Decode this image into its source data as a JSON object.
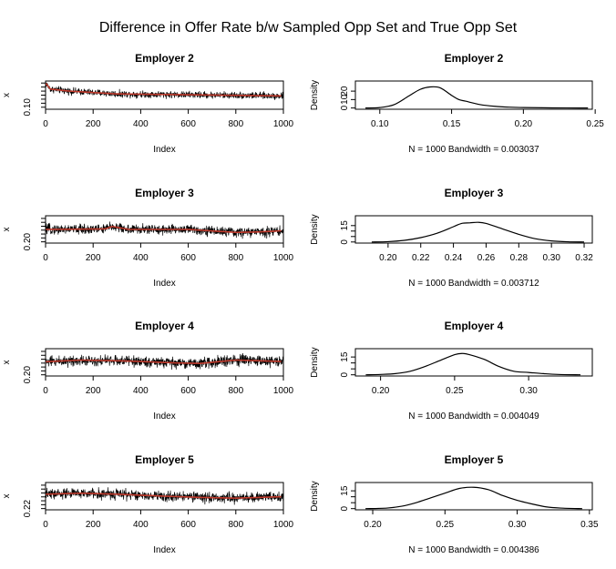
{
  "title": "Difference in Offer Rate b/w Sampled Opp Set and True Opp Set",
  "colors": {
    "trace": "#000000",
    "smooth": "#c0392b",
    "density": "#000000"
  },
  "chart_data": [
    {
      "type": "line",
      "title": "Employer 2",
      "xlabel": "Index",
      "ylabel": "x",
      "xlim": [
        0,
        1000
      ],
      "xticks": [
        0,
        200,
        400,
        600,
        800,
        1000
      ],
      "ylim": [
        0.095,
        0.165
      ],
      "yticks": [
        0.1
      ],
      "ytick_labels": [
        "0.10"
      ],
      "n": 1000,
      "level_knots": [
        [
          0,
          0.16
        ],
        [
          20,
          0.145
        ],
        [
          100,
          0.14
        ],
        [
          300,
          0.133
        ],
        [
          600,
          0.131
        ],
        [
          1000,
          0.128
        ]
      ],
      "noise_sd": 0.006,
      "series": [
        {
          "name": "",
          "role": "trace",
          "color": "#000000"
        },
        {
          "name": "",
          "role": "smooth",
          "color": "#c0392b"
        }
      ]
    },
    {
      "type": "line",
      "title": "Employer 2",
      "xlabel": "N = 1000   Bandwidth = 0.003037",
      "ylabel": "Density",
      "xlim": [
        0.083,
        0.248
      ],
      "xticks": [
        0.1,
        0.15,
        0.2,
        0.25
      ],
      "xtick_labels": [
        "0.10",
        "0.15",
        "0.20",
        "0.25"
      ],
      "ylim": [
        -1.5,
        32
      ],
      "yticks": [
        0,
        10,
        20
      ],
      "ytick_labels": [
        "0",
        "10",
        "20"
      ],
      "x": [
        0.09,
        0.1,
        0.11,
        0.12,
        0.128,
        0.135,
        0.142,
        0.15,
        0.155,
        0.16,
        0.17,
        0.18,
        0.19,
        0.2,
        0.22,
        0.245
      ],
      "y": [
        0,
        0.5,
        4,
        14,
        22,
        25,
        24,
        15,
        10,
        8,
        4,
        2,
        1,
        0.5,
        0.1,
        0
      ]
    },
    {
      "type": "line",
      "title": "Employer 3",
      "xlabel": "Index",
      "ylabel": "x",
      "xlim": [
        0,
        1000
      ],
      "xticks": [
        0,
        200,
        400,
        600,
        800,
        1000
      ],
      "ylim": [
        0.195,
        0.305
      ],
      "yticks": [
        0.2
      ],
      "ytick_labels": [
        "0.20"
      ],
      "n": 1000,
      "level_knots": [
        [
          0,
          0.25
        ],
        [
          250,
          0.252
        ],
        [
          280,
          0.262
        ],
        [
          350,
          0.25
        ],
        [
          600,
          0.25
        ],
        [
          800,
          0.238
        ],
        [
          900,
          0.24
        ],
        [
          1000,
          0.245
        ]
      ],
      "noise_sd": 0.014,
      "series": [
        {
          "name": "",
          "role": "trace",
          "color": "#000000"
        },
        {
          "name": "",
          "role": "smooth",
          "color": "#c0392b"
        }
      ]
    },
    {
      "type": "line",
      "title": "Employer 3",
      "xlabel": "N = 1000   Bandwidth = 0.003712",
      "ylabel": "Density",
      "xlim": [
        0.18,
        0.325
      ],
      "xticks": [
        0.2,
        0.22,
        0.24,
        0.26,
        0.28,
        0.3,
        0.32
      ],
      "xtick_labels": [
        "0.20",
        "0.22",
        "0.24",
        "0.26",
        "0.28",
        "0.30",
        "0.32"
      ],
      "ylim": [
        -1,
        24
      ],
      "yticks": [
        0,
        5,
        10,
        15
      ],
      "ytick_labels": [
        "0",
        "",
        "",
        "15"
      ],
      "x": [
        0.19,
        0.2,
        0.21,
        0.22,
        0.23,
        0.24,
        0.245,
        0.25,
        0.255,
        0.26,
        0.27,
        0.28,
        0.29,
        0.3,
        0.31,
        0.32
      ],
      "y": [
        0,
        0.3,
        1.5,
        4,
        8,
        14,
        17,
        17.5,
        18,
        17,
        12,
        7,
        3,
        1,
        0.2,
        0
      ]
    },
    {
      "type": "line",
      "title": "Employer 4",
      "xlabel": "Index",
      "ylabel": "x",
      "xlim": [
        0,
        1000
      ],
      "xticks": [
        0,
        200,
        400,
        600,
        800,
        1000
      ],
      "ylim": [
        0.195,
        0.31
      ],
      "yticks": [
        0.2
      ],
      "ytick_labels": [
        "0.20"
      ],
      "n": 1000,
      "level_knots": [
        [
          0,
          0.255
        ],
        [
          150,
          0.262
        ],
        [
          350,
          0.258
        ],
        [
          550,
          0.25
        ],
        [
          650,
          0.248
        ],
        [
          800,
          0.262
        ],
        [
          1000,
          0.256
        ]
      ],
      "noise_sd": 0.016,
      "series": [
        {
          "name": "",
          "role": "trace",
          "color": "#000000"
        },
        {
          "name": "",
          "role": "smooth",
          "color": "#c0392b"
        }
      ]
    },
    {
      "type": "line",
      "title": "Employer 4",
      "xlabel": "N = 1000   Bandwidth = 0.004049",
      "ylabel": "Density",
      "xlim": [
        0.183,
        0.343
      ],
      "xticks": [
        0.2,
        0.25,
        0.3
      ],
      "xtick_labels": [
        "0.20",
        "0.25",
        "0.30"
      ],
      "ylim": [
        -1,
        22
      ],
      "yticks": [
        0,
        5,
        10,
        15
      ],
      "ytick_labels": [
        "0",
        "",
        "",
        "15"
      ],
      "x": [
        0.19,
        0.2,
        0.21,
        0.22,
        0.23,
        0.24,
        0.25,
        0.255,
        0.26,
        0.27,
        0.28,
        0.29,
        0.3,
        0.31,
        0.32,
        0.335
      ],
      "y": [
        0,
        0.3,
        1,
        3,
        7,
        12,
        17,
        18,
        17,
        13,
        7,
        3,
        2,
        1,
        0.3,
        0
      ]
    },
    {
      "type": "line",
      "title": "Employer 5",
      "xlabel": "Index",
      "ylabel": "x",
      "xlim": [
        0,
        1000
      ],
      "xticks": [
        0,
        200,
        400,
        600,
        800,
        1000
      ],
      "ylim": [
        0.215,
        0.325
      ],
      "yticks": [
        0.22
      ],
      "ytick_labels": [
        "0.22"
      ],
      "n": 1000,
      "level_knots": [
        [
          0,
          0.278
        ],
        [
          150,
          0.282
        ],
        [
          300,
          0.278
        ],
        [
          500,
          0.27
        ],
        [
          650,
          0.265
        ],
        [
          800,
          0.262
        ],
        [
          1000,
          0.268
        ]
      ],
      "noise_sd": 0.015,
      "series": [
        {
          "name": "",
          "role": "trace",
          "color": "#000000"
        },
        {
          "name": "",
          "role": "smooth",
          "color": "#c0392b"
        }
      ]
    },
    {
      "type": "line",
      "title": "Employer 5",
      "xlabel": "N = 1000   Bandwidth = 0.004386",
      "ylabel": "Density",
      "xlim": [
        0.188,
        0.352
      ],
      "xticks": [
        0.2,
        0.25,
        0.3,
        0.35
      ],
      "xtick_labels": [
        "0.20",
        "0.25",
        "0.30",
        "0.35"
      ],
      "ylim": [
        -1,
        22
      ],
      "yticks": [
        0,
        5,
        10,
        15
      ],
      "ytick_labels": [
        "0",
        "",
        "",
        "15"
      ],
      "x": [
        0.195,
        0.21,
        0.22,
        0.23,
        0.24,
        0.25,
        0.26,
        0.27,
        0.28,
        0.29,
        0.3,
        0.31,
        0.32,
        0.33,
        0.345
      ],
      "y": [
        0,
        0.5,
        2,
        5,
        9,
        13,
        17,
        18,
        16,
        11,
        7,
        4,
        1.5,
        0.5,
        0
      ]
    }
  ]
}
